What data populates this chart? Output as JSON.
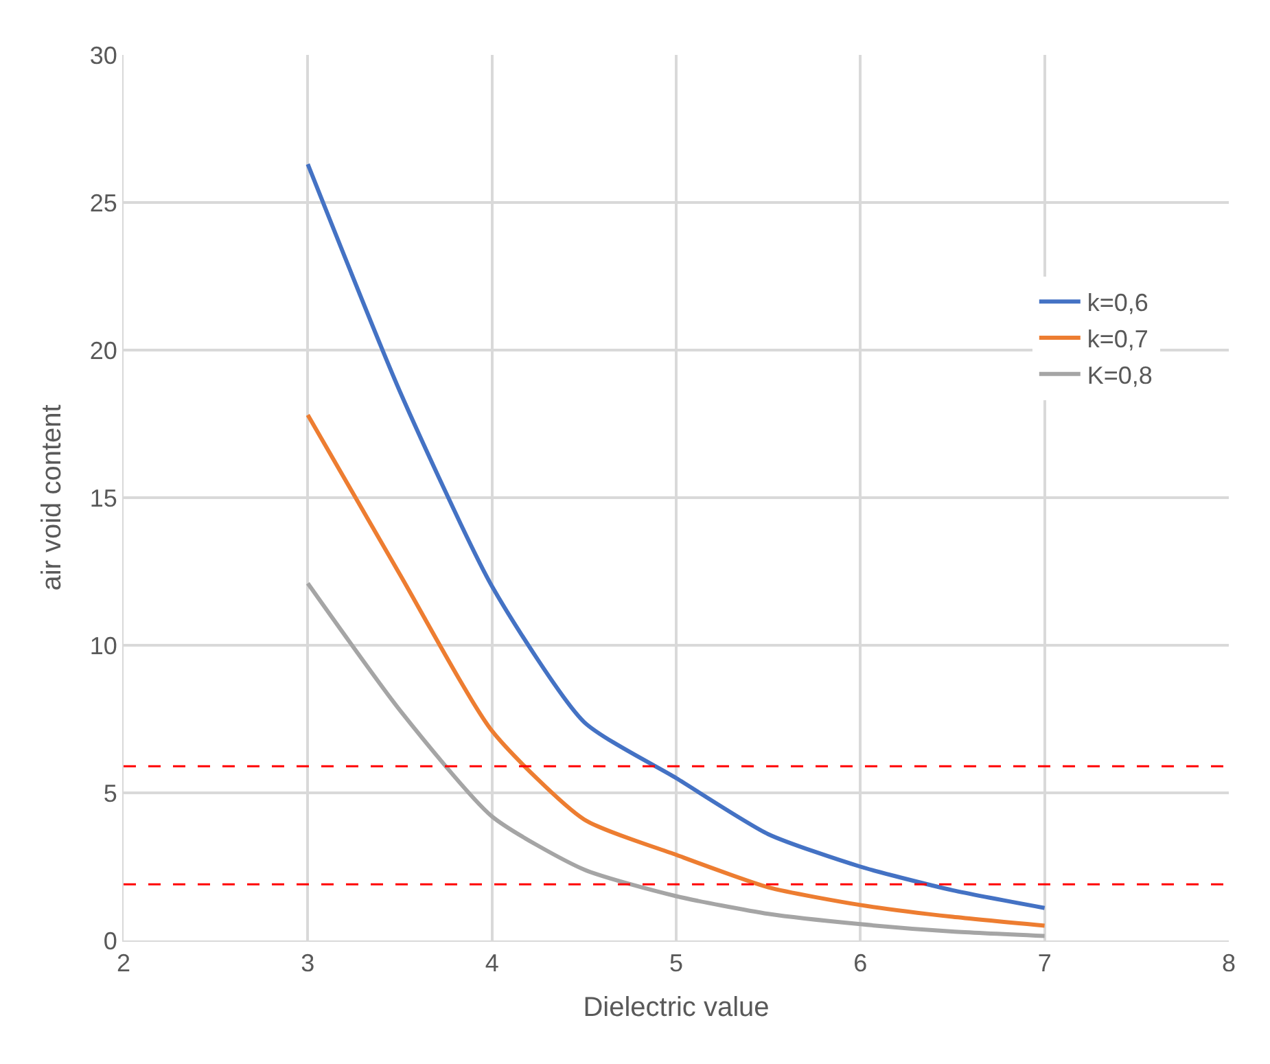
{
  "chart_data": {
    "type": "line",
    "xlabel": "Dielectric value",
    "ylabel": "air void content",
    "x": [
      3,
      3.5,
      4,
      4.5,
      5,
      5.5,
      6,
      6.5,
      7
    ],
    "series": [
      {
        "name": "k=0,6",
        "color": "#4472c4",
        "values": [
          26.3,
          18.6,
          12.0,
          7.4,
          5.5,
          3.6,
          2.5,
          1.7,
          1.1
        ]
      },
      {
        "name": "k=0,7",
        "color": "#ed7d31",
        "values": [
          17.8,
          12.4,
          7.1,
          4.1,
          2.9,
          1.8,
          1.2,
          0.8,
          0.5
        ]
      },
      {
        "name": "K=0,8",
        "color": "#a5a5a5",
        "values": [
          12.1,
          7.8,
          4.2,
          2.4,
          1.5,
          0.9,
          0.55,
          0.3,
          0.15
        ]
      }
    ],
    "xlim": [
      2,
      8
    ],
    "xticks": [
      2,
      3,
      4,
      5,
      6,
      7,
      8
    ],
    "ylim": [
      0,
      30
    ],
    "yticks": [
      0,
      5,
      10,
      15,
      20,
      25,
      30
    ],
    "ref_lines": [
      {
        "axis": "y",
        "value": 5.9,
        "color": "#ff0000",
        "line_style": "dashed"
      },
      {
        "axis": "y",
        "value": 1.9,
        "color": "#ff0000",
        "line_style": "dashed"
      }
    ],
    "grid": true,
    "legend": "right",
    "marker": "none",
    "line_style": "solid"
  }
}
